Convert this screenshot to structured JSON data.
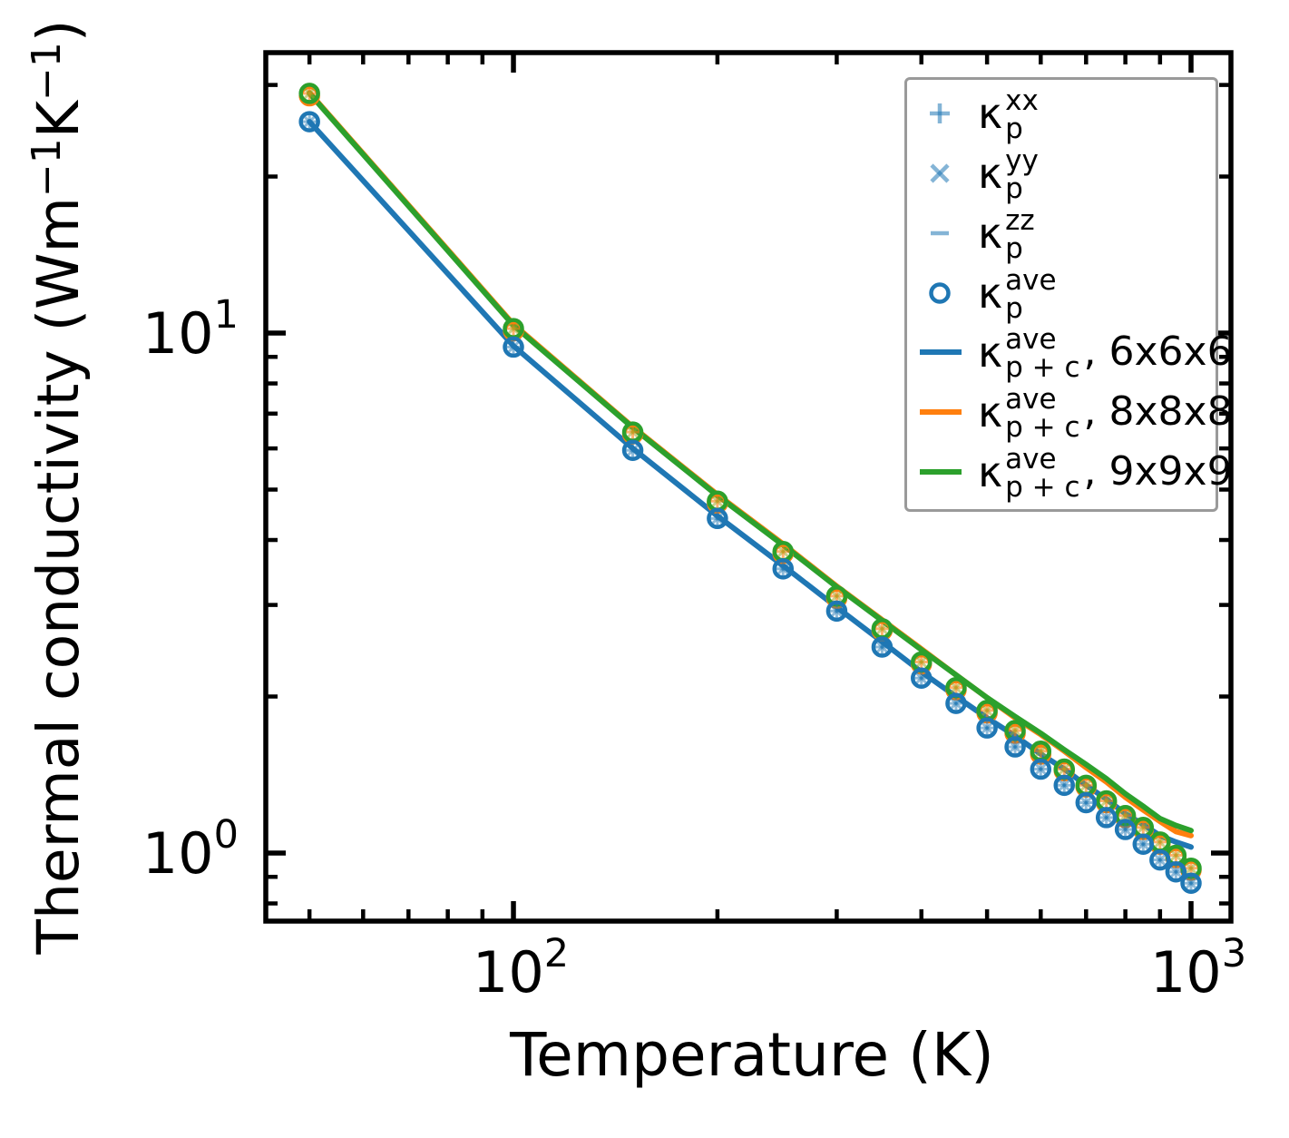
{
  "chart_data": {
    "type": "line+scatter",
    "title": "",
    "xlabel": "Temperature (K)",
    "ylabel_parts": [
      "Thermal conductivity (Wm",
      "−1",
      "K",
      "−1",
      ")"
    ],
    "x_scale": "log",
    "y_scale": "log",
    "xlim": [
      43.1,
      1146
    ],
    "ylim": [
      0.74,
      34.6
    ],
    "x_log_range": [
      1.6345,
      3.0589
    ],
    "y_log_range": [
      -0.1309,
      1.5393
    ],
    "grid": false,
    "x": [
      50,
      100,
      150,
      200,
      250,
      300,
      350,
      400,
      450,
      500,
      550,
      600,
      650,
      700,
      750,
      800,
      850,
      900,
      950,
      1000
    ],
    "series": [
      {
        "id": "kp-ave-8x8x8-markers",
        "name": "kappa_p_ave_8x8x8",
        "role": "scatter",
        "color": "#ff7f0e",
        "spoke_colors": [],
        "values": [
          28.6,
          10.1,
          6.4,
          4.71,
          3.77,
          3.09,
          2.68,
          2.31,
          2.06,
          1.86,
          1.7,
          1.55,
          1.44,
          1.34,
          1.25,
          1.17,
          1.11,
          1.04,
          0.98,
          0.927
        ]
      },
      {
        "id": "kp-ave-9x9x9-markers",
        "name": "kappa_p_ave_9x9x9",
        "role": "scatter",
        "color": "#2ca02c",
        "spoke_colors": [
          "rgba(255,127,14,0.60)",
          "rgba(160,170,40,0.55)"
        ],
        "values": [
          28.9,
          10.2,
          6.45,
          4.75,
          3.8,
          3.12,
          2.7,
          2.33,
          2.08,
          1.88,
          1.72,
          1.57,
          1.45,
          1.35,
          1.26,
          1.18,
          1.12,
          1.05,
          0.99,
          0.935
        ]
      },
      {
        "id": "kp-ave-6x6x6-markers",
        "name": "kappa_p_ave_6x6x6",
        "role": "scatter",
        "color": "#1f77b4",
        "spoke_colors": [
          "rgba(31,119,180,0.50)",
          "rgba(31,119,180,0.50)"
        ],
        "values": [
          25.5,
          9.4,
          5.95,
          4.4,
          3.52,
          2.92,
          2.49,
          2.17,
          1.94,
          1.74,
          1.6,
          1.45,
          1.35,
          1.25,
          1.17,
          1.11,
          1.04,
          0.97,
          0.92,
          0.875
        ]
      },
      {
        "id": "kpc-ave-6x6x6-line",
        "name": "kappa_p_plus_c_ave_6x6x6",
        "role": "line",
        "color": "#1f77b4",
        "values": [
          25.5,
          9.45,
          6.0,
          4.45,
          3.57,
          2.97,
          2.55,
          2.23,
          2.0,
          1.82,
          1.68,
          1.55,
          1.45,
          1.35,
          1.27,
          1.19,
          1.135,
          1.08,
          1.05,
          1.027
        ]
      },
      {
        "id": "kpc-ave-8x8x8-line",
        "name": "kappa_p_plus_c_ave_8x8x8",
        "role": "line",
        "color": "#ff7f0e",
        "values": [
          29.0,
          10.4,
          6.6,
          4.89,
          3.93,
          3.26,
          2.81,
          2.47,
          2.2,
          1.99,
          1.82,
          1.69,
          1.57,
          1.46,
          1.37,
          1.28,
          1.21,
          1.15,
          1.1,
          1.08
        ]
      },
      {
        "id": "kpc-ave-9x9x9-line",
        "name": "kappa_p_plus_c_ave_9x9x9",
        "role": "line",
        "color": "#2ca02c",
        "values": [
          28.9,
          10.35,
          6.58,
          4.87,
          3.91,
          3.25,
          2.8,
          2.46,
          2.2,
          1.99,
          1.83,
          1.7,
          1.58,
          1.48,
          1.39,
          1.3,
          1.23,
          1.165,
          1.13,
          1.105
        ]
      }
    ],
    "x_ticks": {
      "major": [
        {
          "value": 100,
          "mantissa": "10",
          "exp": "2"
        },
        {
          "value": 1000,
          "mantissa": "10",
          "exp": "3"
        }
      ],
      "minor": [
        50,
        60,
        70,
        80,
        90,
        200,
        300,
        400,
        500,
        600,
        700,
        800,
        900
      ]
    },
    "y_ticks": {
      "major": [
        {
          "value": 1,
          "mantissa": "10",
          "exp": "0"
        },
        {
          "value": 10,
          "mantissa": "10",
          "exp": "1"
        }
      ],
      "minor": [
        0.8,
        0.9,
        2,
        3,
        4,
        5,
        6,
        7,
        8,
        9,
        20,
        30
      ]
    },
    "legend": {
      "position": "upper right",
      "kappa": "κ",
      "entries": [
        {
          "id": "kp-xx",
          "symbol": "plus",
          "color": "rgba(31,119,180,0.55)",
          "sup": "xx",
          "sub": "p",
          "suffix": ""
        },
        {
          "id": "kp-yy",
          "symbol": "cross",
          "color": "rgba(31,119,180,0.55)",
          "sup": "yy",
          "sub": "p",
          "suffix": ""
        },
        {
          "id": "kp-zz",
          "symbol": "dash",
          "color": "rgba(31,119,180,0.55)",
          "sup": "zz",
          "sub": "p",
          "suffix": ""
        },
        {
          "id": "kp-ave",
          "symbol": "circle",
          "color": "#1f77b4",
          "sup": "ave",
          "sub": "p",
          "suffix": ""
        },
        {
          "id": "kpc-ave-6x6x6",
          "symbol": "line",
          "color": "#1f77b4",
          "sup": "ave",
          "sub": "p + c",
          "suffix": ", 6x6x6"
        },
        {
          "id": "kpc-ave-8x8x8",
          "symbol": "line",
          "color": "#ff7f0e",
          "sup": "ave",
          "sub": "p + c",
          "suffix": ", 8x8x8"
        },
        {
          "id": "kpc-ave-9x9x9",
          "symbol": "line",
          "color": "#2ca02c",
          "sup": "ave",
          "sub": "p + c",
          "suffix": ", 9x9x9"
        }
      ]
    },
    "colors": {
      "blue": "#1f77b4",
      "orange": "#ff7f0e",
      "green": "#2ca02c",
      "light_blue": "rgba(31,119,180,0.50)",
      "axis": "#000000",
      "legend_border": "#9a9a9a"
    }
  }
}
